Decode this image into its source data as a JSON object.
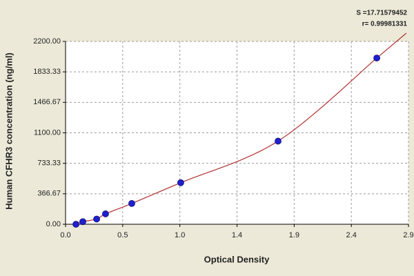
{
  "chart_data": {
    "type": "scatter",
    "x_label": "Optical Density",
    "y_label": "Human CFHR3 concentration (ng/ml)",
    "annotations": [
      "S =17.71579452",
      "r= 0.99981331"
    ],
    "series": [
      {
        "color": "#1f1fd0",
        "x": [
          0.088,
          0.146,
          0.263,
          0.338,
          0.56,
          0.974,
          1.797,
          2.632
        ],
        "values": [
          0,
          31.25,
          62.5,
          125,
          250,
          500,
          1000,
          2000
        ]
      }
    ],
    "fit_color": "#b03030",
    "xlim": [
      0,
      2.9
    ],
    "ylim": [
      0,
      2200
    ],
    "xticks": [
      {
        "value": 0,
        "label": "0.0"
      },
      {
        "value": 0.4833,
        "label": "0.5"
      },
      {
        "value": 0.9667,
        "label": "1.0"
      },
      {
        "value": 1.45,
        "label": "1.4"
      },
      {
        "value": 1.9333,
        "label": "1.9"
      },
      {
        "value": 2.4167,
        "label": "2.4"
      },
      {
        "value": 2.9,
        "label": "2.9"
      }
    ],
    "yticks": [
      {
        "value": 0,
        "label": "0.00"
      },
      366.67,
      733.33,
      {
        "value": 1100,
        "label": "1100.00"
      },
      1466.67,
      1833.33,
      {
        "value": 2200,
        "label": "2200.00"
      }
    ],
    "grid": true
  }
}
